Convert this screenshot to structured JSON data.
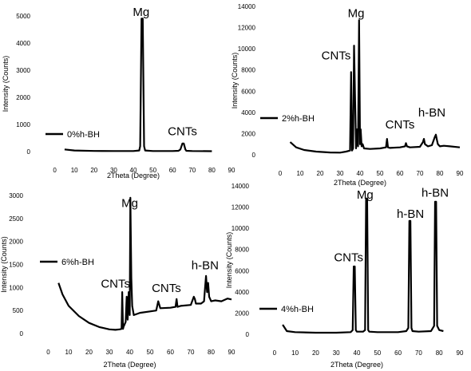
{
  "chart_data": [
    {
      "type": "line",
      "panel": "top-left",
      "xlabel": "2Theta (Degree)",
      "ylabel": "Intensity (Counts)",
      "xlim": [
        -10,
        90
      ],
      "ylim": [
        0,
        5000
      ],
      "xticks": [
        0,
        10,
        20,
        30,
        40,
        50,
        60,
        70,
        80,
        90
      ],
      "yticks": [
        0,
        1000,
        2000,
        3000,
        4000,
        5000
      ],
      "legend": "0%h-BH",
      "annotations": [
        {
          "text": "Mg",
          "x": 44,
          "y": 5000
        },
        {
          "text": "CNTs",
          "x": 65,
          "y": 600
        }
      ],
      "series": [
        {
          "x": [
            5,
            10,
            20,
            30,
            40,
            43,
            43.5,
            44.2,
            44.8,
            45.5,
            46,
            50,
            60,
            63,
            64,
            65,
            65.7,
            66.5,
            67,
            70,
            80
          ],
          "y": [
            80,
            40,
            25,
            20,
            20,
            40,
            200,
            4900,
            4900,
            200,
            40,
            20,
            20,
            30,
            80,
            300,
            300,
            80,
            30,
            20,
            15
          ]
        }
      ]
    },
    {
      "type": "line",
      "panel": "top-right",
      "xlabel": "2Theta (Degree)",
      "ylabel": "Intensity (Counts)",
      "xlim": [
        -10,
        90
      ],
      "ylim": [
        0,
        14000
      ],
      "xticks": [
        0,
        10,
        20,
        30,
        40,
        50,
        60,
        70,
        80,
        90
      ],
      "yticks": [
        0,
        2000,
        4000,
        6000,
        8000,
        10000,
        12000,
        14000
      ],
      "legend": "2%h-BH",
      "annotations": [
        {
          "text": "Mg",
          "x": 38,
          "y": 13000
        },
        {
          "text": "CNTs",
          "x": 28,
          "y": 9000
        },
        {
          "text": "CNTs",
          "x": 60,
          "y": 2500
        },
        {
          "text": "h-BN",
          "x": 76,
          "y": 3600
        }
      ],
      "series": [
        {
          "x": [
            5,
            8,
            12,
            18,
            25,
            30,
            33,
            35,
            35.5,
            36,
            36.5,
            37,
            38,
            38.5,
            39,
            39.5,
            40,
            40.3,
            40.8,
            41.3,
            42,
            45,
            50,
            53,
            53.5,
            54,
            55,
            60,
            62.5,
            63,
            63.5,
            65,
            70,
            71.5,
            72,
            72.5,
            74,
            76,
            77.5,
            78,
            78.5,
            79,
            80,
            82,
            85,
            90
          ],
          "y": [
            1200,
            700,
            450,
            300,
            220,
            200,
            300,
            400,
            7800,
            400,
            600,
            10300,
            600,
            2400,
            800,
            12700,
            1000,
            2400,
            800,
            1000,
            600,
            550,
            600,
            700,
            1500,
            700,
            650,
            700,
            800,
            1100,
            800,
            700,
            750,
            1200,
            1500,
            1000,
            800,
            900,
            1700,
            1900,
            1400,
            1000,
            800,
            850,
            800,
            700
          ]
        }
      ]
    },
    {
      "type": "line",
      "panel": "bottom-left",
      "xlabel": "2Theta (Degree)",
      "ylabel": "Intensity (Counts)",
      "xlim": [
        -10,
        90
      ],
      "ylim": [
        0,
        3000
      ],
      "xticks": [
        0,
        10,
        20,
        30,
        40,
        50,
        60,
        70,
        80,
        90
      ],
      "yticks": [
        0,
        500,
        1000,
        1500,
        2000,
        2500,
        3000
      ],
      "legend": "6%h-BH",
      "annotations": [
        {
          "text": "Mg",
          "x": 40,
          "y": 2750
        },
        {
          "text": "CNTs",
          "x": 33,
          "y": 1000
        },
        {
          "text": "CNTs",
          "x": 58,
          "y": 900
        },
        {
          "text": "h-BN",
          "x": 77,
          "y": 1400
        }
      ],
      "series": [
        {
          "x": [
            5,
            7,
            10,
            15,
            20,
            25,
            30,
            33,
            35,
            36,
            36.3,
            36.7,
            37,
            38,
            38.5,
            39,
            39.5,
            40,
            40.3,
            40.8,
            41.2,
            42,
            45,
            50,
            53,
            54,
            55,
            60,
            62.5,
            63,
            63.5,
            65,
            70,
            71.5,
            72,
            72.5,
            75,
            76.5,
            77,
            77.5,
            78,
            78.5,
            79,
            80,
            82,
            85,
            88,
            90
          ],
          "y": [
            1100,
            850,
            600,
            380,
            230,
            140,
            90,
            80,
            90,
            100,
            900,
            100,
            150,
            250,
            800,
            300,
            900,
            400,
            2950,
            1200,
            600,
            400,
            450,
            480,
            500,
            700,
            550,
            560,
            580,
            750,
            580,
            600,
            620,
            800,
            750,
            650,
            650,
            700,
            1000,
            1250,
            900,
            1100,
            800,
            700,
            720,
            700,
            760,
            740
          ]
        }
      ]
    },
    {
      "type": "line",
      "panel": "bottom-right",
      "xlabel": "2Theta (Degree)",
      "ylabel": "Intensity (Counts)",
      "xlim": [
        -10,
        90
      ],
      "ylim": [
        0,
        14000
      ],
      "xticks": [
        0,
        10,
        20,
        30,
        40,
        50,
        60,
        70,
        80,
        90
      ],
      "yticks": [
        0,
        2000,
        4000,
        6000,
        8000,
        10000,
        12000,
        14000
      ],
      "legend": "4%h-BH",
      "annotations": [
        {
          "text": "Mg",
          "x": 44,
          "y": 12800
        },
        {
          "text": "CNTs",
          "x": 36,
          "y": 6900
        },
        {
          "text": "h-BN",
          "x": 66,
          "y": 11000
        },
        {
          "text": "h-BN",
          "x": 78,
          "y": 13000
        }
      ],
      "series": [
        {
          "x": [
            4,
            6,
            10,
            20,
            30,
            37,
            38,
            38.5,
            39,
            39.5,
            40,
            43,
            44,
            44.5,
            45,
            45.5,
            46,
            50,
            60,
            64,
            65,
            65.5,
            66,
            66.5,
            67,
            70,
            76,
            77.5,
            78,
            78.5,
            79,
            80,
            82
          ],
          "y": [
            900,
            300,
            200,
            150,
            150,
            200,
            400,
            6400,
            6400,
            400,
            250,
            250,
            400,
            12800,
            12800,
            400,
            250,
            200,
            200,
            300,
            600,
            10700,
            10700,
            600,
            300,
            250,
            300,
            800,
            12500,
            12500,
            800,
            400,
            300
          ]
        }
      ]
    }
  ]
}
